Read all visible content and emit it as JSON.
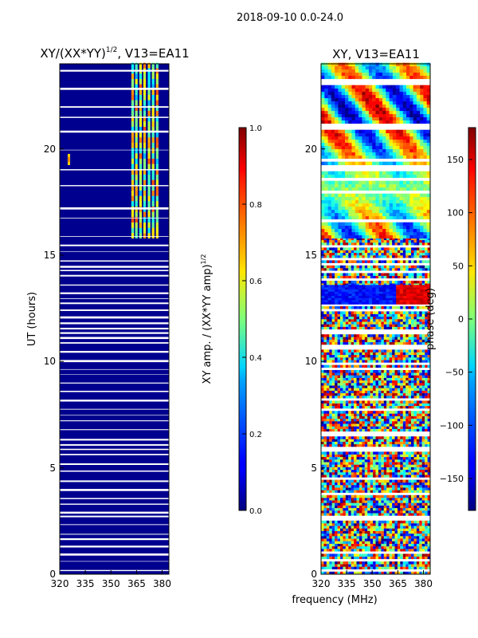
{
  "figure": {
    "suptitle": "2018-09-10 0.0-24.0",
    "xlabel": "frequency (MHz)"
  },
  "chart_data": [
    {
      "type": "heatmap",
      "title_main": "XY/(XX*YY)",
      "title_sup": "1/2",
      "title_rest": ", V13=EA11",
      "ylabel": "UT (hours)",
      "xlim": [
        320,
        384
      ],
      "ylim": [
        0,
        24
      ],
      "xticks": [
        320,
        335,
        350,
        365,
        380
      ],
      "yticks": [
        0,
        5,
        10,
        15,
        20
      ],
      "colormap": "jet",
      "colorbar": {
        "label_main": "XY amp. / (XX*YY amp)",
        "label_sup": "1/2",
        "range": [
          0.0,
          1.0
        ],
        "ticks": [
          0.0,
          0.2,
          0.4,
          0.6,
          0.8,
          1.0
        ],
        "tick_labels": [
          "0.0",
          "0.2",
          "0.4",
          "0.6",
          "0.8",
          "1.0"
        ]
      },
      "notes": "Low normalized amplitude (~0.0-0.05) almost everywhere; elevated amplitude (0.3-0.8) in ~362-378 MHz band from ~15.8 to 24 h; isolated spike near 325 MHz at ~19.5 h; many flagged (blank) time rows."
    },
    {
      "type": "heatmap",
      "title": "XY, V13=EA11",
      "ylabel": "",
      "xlim": [
        320,
        384
      ],
      "ylim": [
        0,
        24
      ],
      "xticks": [
        320,
        335,
        350,
        365,
        380
      ],
      "yticks": [
        0,
        5,
        10,
        15,
        20
      ],
      "colormap": "jet",
      "colorbar": {
        "label": "phase (deg)",
        "range": [
          -180,
          180
        ],
        "ticks": [
          -150,
          -100,
          -50,
          0,
          50,
          100,
          150
        ],
        "tick_labels": [
          "−150",
          "−100",
          "−50",
          "0",
          "50",
          "100",
          "150"
        ]
      },
      "notes": "Random phase noise from 0 to ~15.8 h with flagged rows; coherent phase structure with drifting features from ~15.8 to 24 h; coherent band near 12.7-13.5 h."
    }
  ]
}
